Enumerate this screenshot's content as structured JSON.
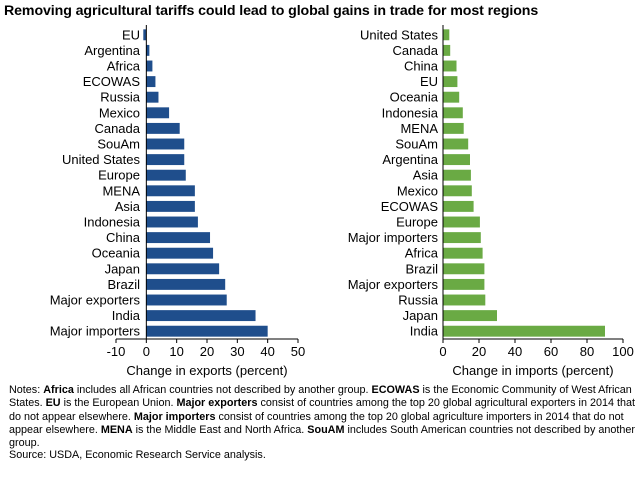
{
  "title": "Removing agricultural tariffs could lead to global gains in trade for most regions",
  "chart_data": [
    {
      "type": "bar",
      "orientation": "horizontal",
      "xlabel": "Change in exports (percent)",
      "xlim": [
        -10,
        50
      ],
      "xticks": [
        "-10",
        "0",
        "10",
        "20",
        "30",
        "40",
        "50"
      ],
      "color": "#1f4e8c",
      "categories": [
        "EU",
        "Argentina",
        "Africa",
        "ECOWAS",
        "Russia",
        "Mexico",
        "Canada",
        "SouAm",
        "United States",
        "Europe",
        "MENA",
        "Asia",
        "Indonesia",
        "China",
        "Oceania",
        "Japan",
        "Brazil",
        "Major exporters",
        "India",
        "Major importers"
      ],
      "values": [
        -1,
        1,
        2,
        3,
        4,
        7.5,
        11,
        12.5,
        12.5,
        13,
        16,
        16,
        17,
        21,
        22,
        24,
        26,
        26.5,
        36,
        40
      ]
    },
    {
      "type": "bar",
      "orientation": "horizontal",
      "xlabel": "Change in imports (percent)",
      "xlim": [
        0,
        100
      ],
      "xticks": [
        "0",
        "20",
        "40",
        "60",
        "80",
        "100"
      ],
      "color": "#6aaa44",
      "categories": [
        "United States",
        "Canada",
        "China",
        "EU",
        "Oceania",
        "Indonesia",
        "MENA",
        "SouAm",
        "Argentina",
        "Asia",
        "Mexico",
        "ECOWAS",
        "Europe",
        "Major importers",
        "Africa",
        "Brazil",
        "Major exporters",
        "Russia",
        "Japan",
        "India"
      ],
      "values": [
        3.5,
        4,
        7.5,
        8,
        9,
        11,
        11.5,
        14,
        15,
        15.5,
        16,
        17,
        20.5,
        21,
        22,
        23,
        23,
        23.5,
        30,
        90
      ]
    }
  ],
  "notes": [
    {
      "t": "Notes: ",
      "b": false
    },
    {
      "t": "Africa",
      "b": true
    },
    {
      "t": " includes all African countries not described by another group. ",
      "b": false
    },
    {
      "t": "ECOWAS",
      "b": true
    },
    {
      "t": " is the Economic Community of West African States. ",
      "b": false
    },
    {
      "t": "EU",
      "b": true
    },
    {
      "t": " is the European Union. ",
      "b": false
    },
    {
      "t": "Major exporters",
      "b": true
    },
    {
      "t": " consist of countries among the top 20 global agricultural exporters in 2014 that do not appear elsewhere. ",
      "b": false
    },
    {
      "t": "Major importers",
      "b": true
    },
    {
      "t": " consist of countries among the top 20 global agriculture importers in 2014 that do not appear elsewhere. ",
      "b": false
    },
    {
      "t": "MENA",
      "b": true
    },
    {
      "t": " is the Middle East and North Africa. ",
      "b": false
    },
    {
      "t": "SouAM",
      "b": true
    },
    {
      "t": " includes South American countries not described by another group.",
      "b": false
    }
  ],
  "source": "Source: USDA, Economic Research Service analysis."
}
